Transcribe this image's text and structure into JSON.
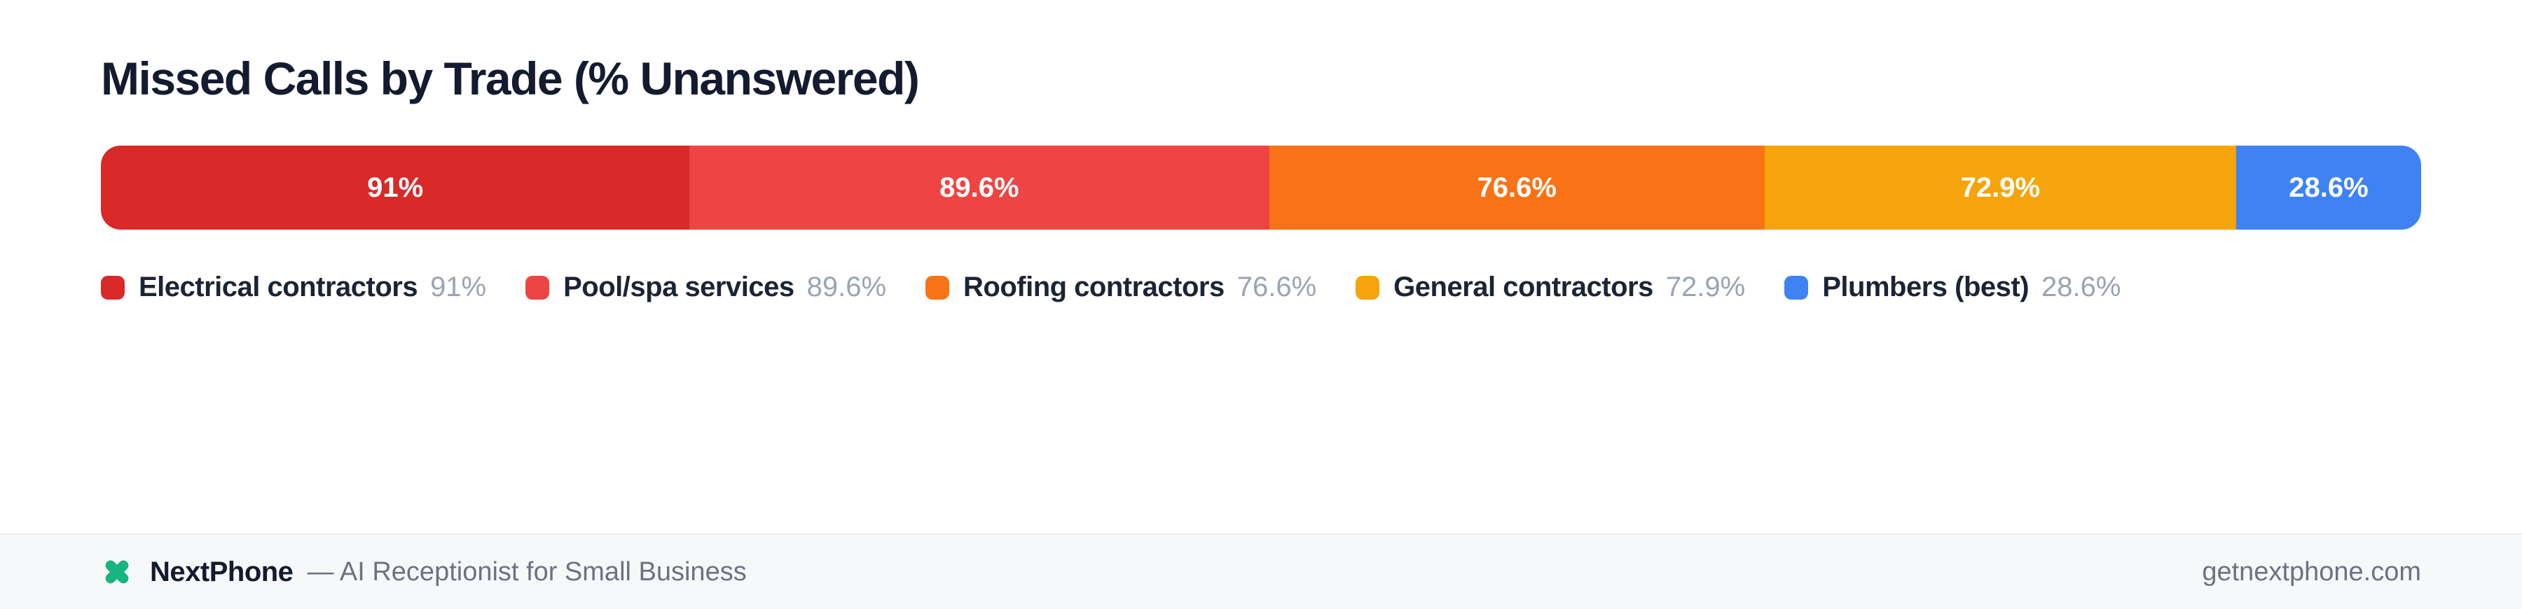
{
  "title": "Missed Calls by Trade (% Unanswered)",
  "chart_data": {
    "type": "bar",
    "subtype": "proportional-stacked-horizontal",
    "title": "Missed Calls by Trade (% Unanswered)",
    "categories": [
      "Electrical contractors",
      "Pool/spa services",
      "Roofing contractors",
      "General contractors",
      "Plumbers (best)"
    ],
    "values": [
      91,
      89.6,
      76.6,
      72.9,
      28.6
    ],
    "labels": [
      "91%",
      "89.6%",
      "76.6%",
      "72.9%",
      "28.6%"
    ],
    "colors": [
      "#d92928",
      "#ef4444",
      "#f97316",
      "#f5a40b",
      "#3e82f4"
    ],
    "unit": "% unanswered",
    "legend_position": "bottom",
    "grid": false
  },
  "legend": {
    "items": [
      {
        "label": "Electrical contractors",
        "value_label": "91%",
        "color": "#d92928"
      },
      {
        "label": "Pool/spa services",
        "value_label": "89.6%",
        "color": "#ef4444"
      },
      {
        "label": "Roofing contractors",
        "value_label": "76.6%",
        "color": "#f97316"
      },
      {
        "label": "General contractors",
        "value_label": "72.9%",
        "color": "#f5a40b"
      },
      {
        "label": "Plumbers (best)",
        "value_label": "28.6%",
        "color": "#3e82f4"
      }
    ]
  },
  "footer": {
    "brand": "NextPhone",
    "tagline": "— AI Receptionist for Small Business",
    "website": "getnextphone.com",
    "logo_icon": "x-cross-icon",
    "logo_color": "#17b57f"
  },
  "colors": {
    "title_text": "#141b2e",
    "legend_label": "#1c2434",
    "muted_text": "#9ca3af",
    "footer_background": "#f7f8fa",
    "footer_border": "#e9ebef",
    "footer_text": "#6b7280",
    "page_background": "#ffffff"
  }
}
